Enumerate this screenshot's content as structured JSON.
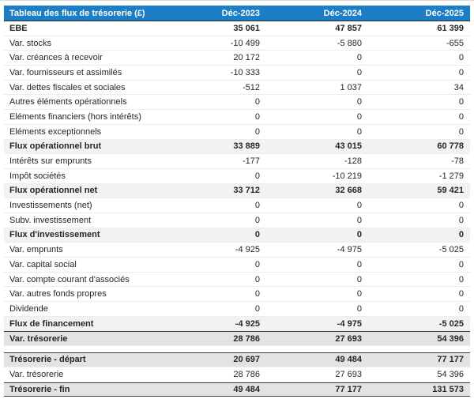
{
  "colors": {
    "header_bg": "#1b7ec6",
    "header_text": "#ffffff",
    "subtotal_row_bg": "#f2f2f2",
    "total_row_bg": "#e3e3e3",
    "dark_border": "#3c3c3c",
    "row_separator": "#ededed"
  },
  "table": {
    "title": "Tableau des flux de trésorerie (£)",
    "columns": [
      "Déc-2023",
      "Déc-2024",
      "Déc-2025"
    ],
    "rows": [
      {
        "label": "EBE",
        "values": [
          "35 061",
          "47 857",
          "61 399"
        ],
        "emphasis": "bold"
      },
      {
        "label": "Var. stocks",
        "values": [
          "-10 499",
          "-5 880",
          "-655"
        ],
        "emphasis": "normal"
      },
      {
        "label": "Var. créances à recevoir",
        "values": [
          "20 172",
          "0",
          "0"
        ],
        "emphasis": "normal"
      },
      {
        "label": "Var. fournisseurs et assimilés",
        "values": [
          "-10 333",
          "0",
          "0"
        ],
        "emphasis": "normal"
      },
      {
        "label": "Var. dettes fiscales et sociales",
        "values": [
          "-512",
          "1 037",
          "34"
        ],
        "emphasis": "normal"
      },
      {
        "label": "Autres éléments opérationnels",
        "values": [
          "0",
          "0",
          "0"
        ],
        "emphasis": "normal"
      },
      {
        "label": "Eléments financiers (hors intérêts)",
        "values": [
          "0",
          "0",
          "0"
        ],
        "emphasis": "normal"
      },
      {
        "label": "Eléments exceptionnels",
        "values": [
          "0",
          "0",
          "0"
        ],
        "emphasis": "normal"
      },
      {
        "label": "Flux opérationnel brut",
        "values": [
          "33 889",
          "43 015",
          "60 778"
        ],
        "emphasis": "subtotal"
      },
      {
        "label": "Intérêts sur emprunts",
        "values": [
          "-177",
          "-128",
          "-78"
        ],
        "emphasis": "normal"
      },
      {
        "label": "Impôt sociétés",
        "values": [
          "0",
          "-10 219",
          "-1 279"
        ],
        "emphasis": "normal"
      },
      {
        "label": "Flux opérationnel net",
        "values": [
          "33 712",
          "32 668",
          "59 421"
        ],
        "emphasis": "subtotal"
      },
      {
        "label": "Investissements (net)",
        "values": [
          "0",
          "0",
          "0"
        ],
        "emphasis": "normal"
      },
      {
        "label": "Subv. investissement",
        "values": [
          "0",
          "0",
          "0"
        ],
        "emphasis": "normal"
      },
      {
        "label": "Flux d'investissement",
        "values": [
          "0",
          "0",
          "0"
        ],
        "emphasis": "subtotal"
      },
      {
        "label": "Var. emprunts",
        "values": [
          "-4 925",
          "-4 975",
          "-5 025"
        ],
        "emphasis": "normal"
      },
      {
        "label": "Var. capital social",
        "values": [
          "0",
          "0",
          "0"
        ],
        "emphasis": "normal"
      },
      {
        "label": "Var. compte courant d'associés",
        "values": [
          "0",
          "0",
          "0"
        ],
        "emphasis": "normal"
      },
      {
        "label": "Var. autres fonds propres",
        "values": [
          "0",
          "0",
          "0"
        ],
        "emphasis": "normal"
      },
      {
        "label": "Dividende",
        "values": [
          "0",
          "0",
          "0"
        ],
        "emphasis": "normal"
      },
      {
        "label": "Flux de financement",
        "values": [
          "-4 925",
          "-4 975",
          "-5 025"
        ],
        "emphasis": "subtotal"
      },
      {
        "label": "Var. trésorerie",
        "values": [
          "28 786",
          "27 693",
          "54 396"
        ],
        "emphasis": "total"
      }
    ],
    "summary_rows": [
      {
        "label": "Trésorerie - départ",
        "values": [
          "20 697",
          "49 484",
          "77 177"
        ],
        "emphasis": "total"
      },
      {
        "label": "Var. trésorerie",
        "values": [
          "28 786",
          "27 693",
          "54 396"
        ],
        "emphasis": "normal"
      },
      {
        "label": "Trésorerie - fin",
        "values": [
          "49 484",
          "77 177",
          "131 573"
        ],
        "emphasis": "total-end"
      }
    ]
  }
}
